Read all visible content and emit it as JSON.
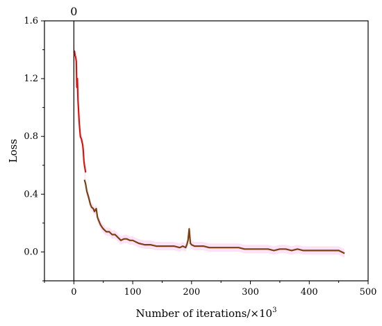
{
  "chart_data": {
    "type": "line",
    "title": "",
    "xlabel": "Number of iterations/×10",
    "xlabel_sup": "3",
    "ylabel": "Loss",
    "xlim": [
      -50,
      500
    ],
    "ylim": [
      -0.2,
      1.6
    ],
    "xticks": [
      0,
      100,
      200,
      300,
      400,
      500
    ],
    "xtick_labels": [
      "0",
      "100",
      "200",
      "300",
      "400",
      "500"
    ],
    "yticks": [
      0.0,
      0.4,
      0.8,
      1.2,
      1.6
    ],
    "ytick_labels": [
      "0.0",
      "0.4",
      "0.8",
      "1.2",
      "1.6"
    ],
    "grid": false,
    "vertical_marker": {
      "x": 0,
      "label": "0",
      "color": "#000000"
    },
    "shade_color": "#fbd9f5",
    "series": [
      {
        "color": "#e0100f",
        "x": [
          0,
          1,
          2,
          3,
          4,
          5,
          6,
          7,
          8,
          9,
          10,
          11,
          12,
          13,
          14,
          15,
          16,
          17,
          18,
          20
        ],
        "values": [
          1.38,
          1.39,
          1.36,
          1.35,
          1.32,
          1.14,
          1.2,
          1.05,
          0.98,
          0.9,
          0.85,
          0.8,
          0.79,
          0.78,
          0.76,
          0.74,
          0.7,
          0.63,
          0.6,
          0.55
        ]
      },
      {
        "color": "#7a4010",
        "x": [
          18,
          20,
          22,
          25,
          28,
          30,
          33,
          35,
          38,
          40,
          42,
          45,
          48,
          50,
          55,
          60,
          65,
          70,
          75,
          80,
          85,
          90,
          95,
          100,
          110,
          120,
          130,
          140,
          150,
          160,
          170,
          180,
          185,
          190,
          192,
          194,
          196,
          198,
          200,
          205,
          210,
          220,
          230,
          240,
          250,
          260,
          270,
          280,
          290,
          300,
          310,
          320,
          330,
          340,
          350,
          360,
          370,
          380,
          390,
          400,
          410,
          420,
          430,
          440,
          450,
          455,
          460
        ],
        "values": [
          0.5,
          0.47,
          0.42,
          0.38,
          0.33,
          0.31,
          0.3,
          0.28,
          0.3,
          0.24,
          0.22,
          0.19,
          0.17,
          0.16,
          0.14,
          0.14,
          0.12,
          0.12,
          0.1,
          0.08,
          0.09,
          0.09,
          0.08,
          0.08,
          0.06,
          0.05,
          0.05,
          0.04,
          0.04,
          0.04,
          0.04,
          0.03,
          0.04,
          0.03,
          0.05,
          0.08,
          0.16,
          0.06,
          0.05,
          0.04,
          0.04,
          0.04,
          0.03,
          0.03,
          0.03,
          0.03,
          0.03,
          0.03,
          0.02,
          0.02,
          0.02,
          0.02,
          0.02,
          0.01,
          0.02,
          0.02,
          0.01,
          0.02,
          0.01,
          0.01,
          0.01,
          0.01,
          0.01,
          0.01,
          0.01,
          0.0,
          -0.01
        ]
      }
    ]
  }
}
